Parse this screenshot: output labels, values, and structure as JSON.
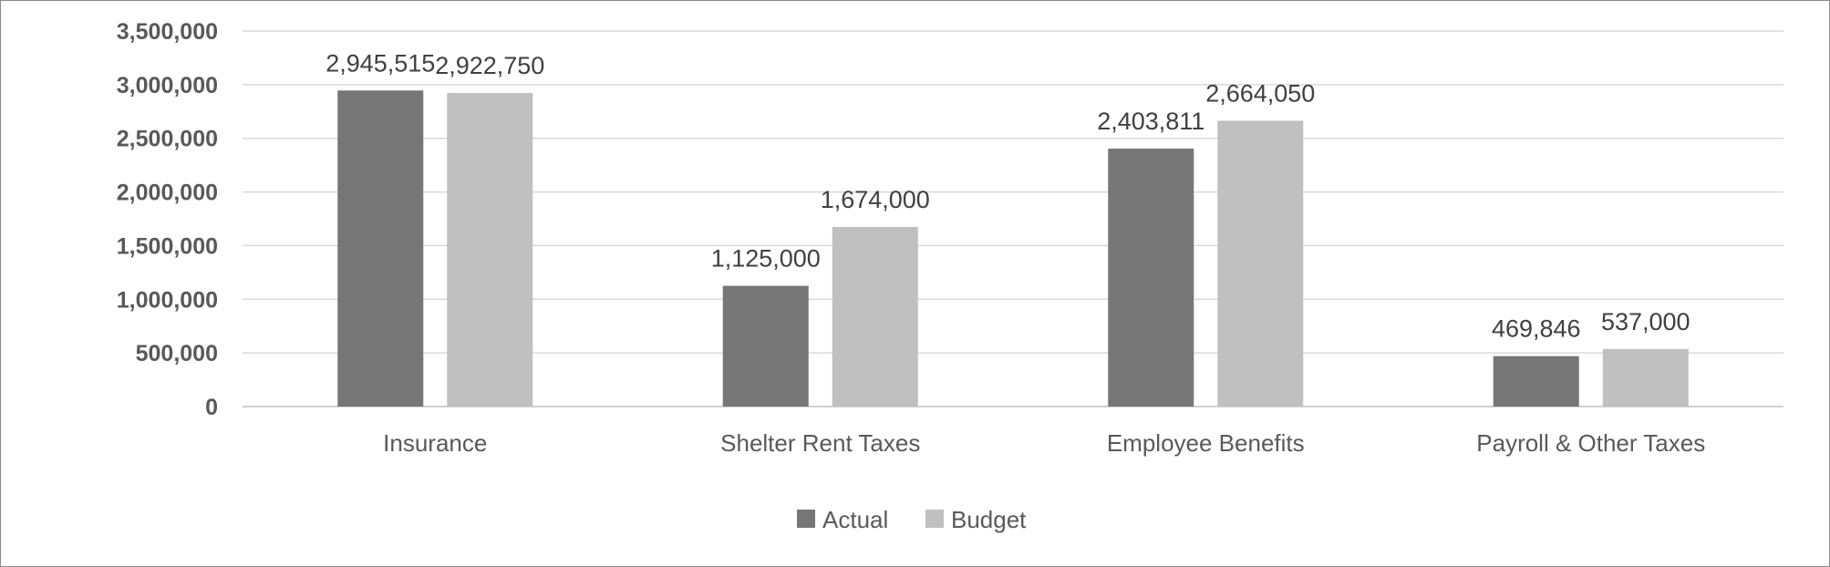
{
  "chart_data": {
    "type": "bar",
    "categories": [
      "Insurance",
      "Shelter Rent Taxes",
      "Employee Benefits",
      "Payroll & Other Taxes"
    ],
    "series": [
      {
        "name": "Actual",
        "values": [
          2945515,
          1125000,
          2403811,
          469846
        ],
        "color": "#767676"
      },
      {
        "name": "Budget",
        "values": [
          2922750,
          1674000,
          2664050,
          537000
        ],
        "color": "#c0c0c0"
      }
    ],
    "ylim": [
      0,
      3500000
    ],
    "yticks": [
      0,
      500000,
      1000000,
      1500000,
      2000000,
      2500000,
      3000000,
      3500000
    ],
    "ytick_labels": [
      "0",
      "500,000",
      "1,000,000",
      "1,500,000",
      "2,000,000",
      "2,500,000",
      "3,000,000",
      "3,500,000"
    ],
    "data_labels": [
      [
        "2,945,515",
        "1,125,000",
        "2,403,811",
        "469,846"
      ],
      [
        "2,922,750",
        "1,674,000",
        "2,664,050",
        "537,000"
      ]
    ],
    "grid": true,
    "legend_position": "bottom",
    "title": "",
    "xlabel": "",
    "ylabel": ""
  }
}
